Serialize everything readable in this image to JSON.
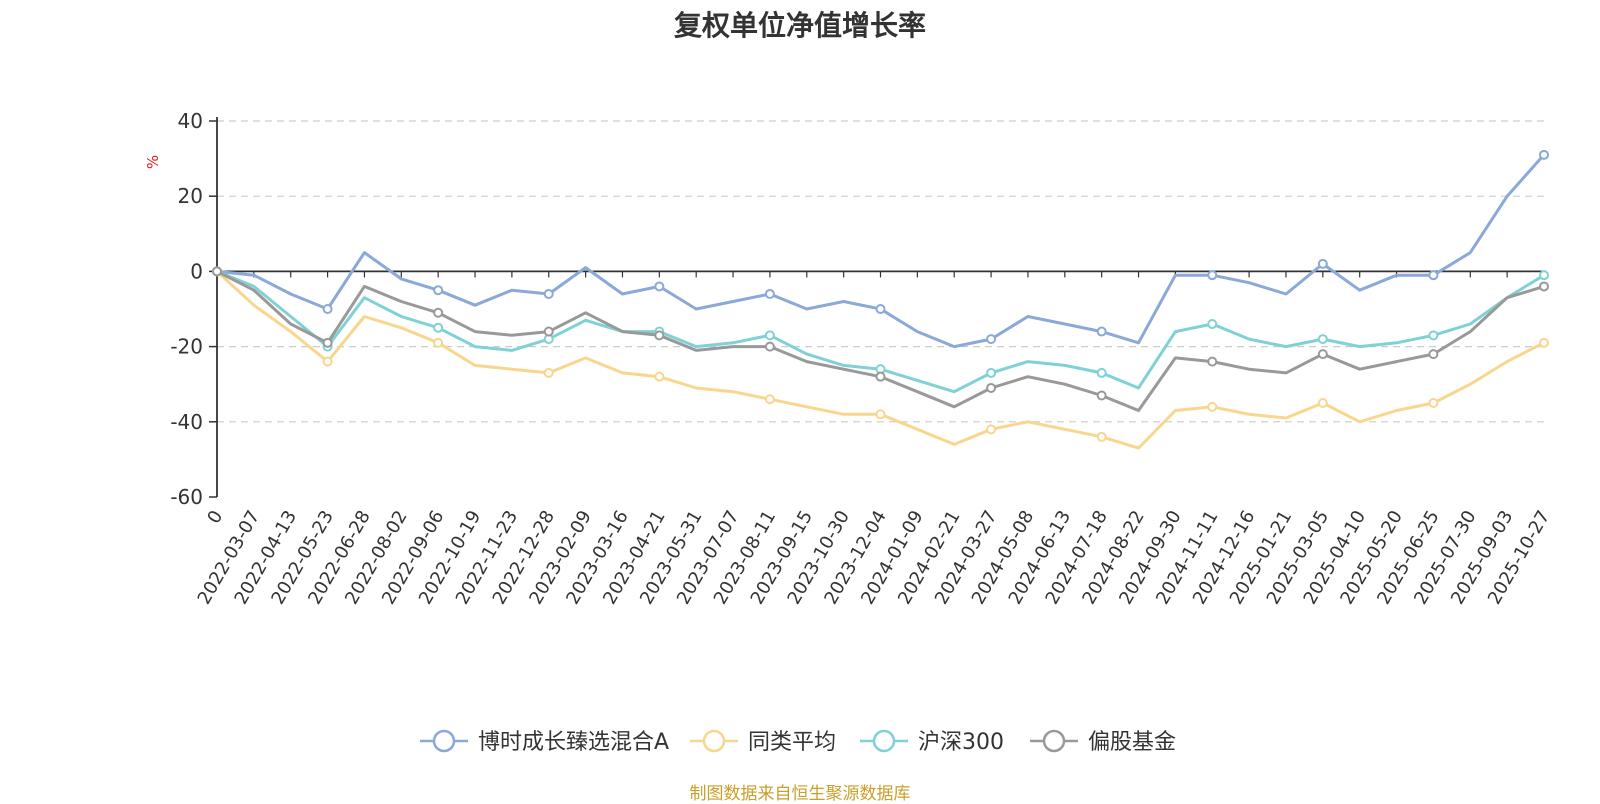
{
  "footer": "制图数据来自恒生聚源数据库",
  "chart_data": {
    "type": "line",
    "title": "复权单位净值增长率",
    "ylabel": "%",
    "xlabel": "",
    "ylim": [
      -60,
      40
    ],
    "yticks": [
      40,
      20,
      0,
      -20,
      -40,
      -60
    ],
    "grid": true,
    "legend_position": "bottom-center",
    "categories": [
      "0",
      "2022-03-07",
      "2022-04-13",
      "2022-05-23",
      "2022-06-28",
      "2022-08-02",
      "2022-09-06",
      "2022-10-19",
      "2022-11-23",
      "2022-12-28",
      "2023-02-09",
      "2023-03-16",
      "2023-04-21",
      "2023-05-31",
      "2023-07-07",
      "2023-08-11",
      "2023-09-15",
      "2023-10-30",
      "2023-12-04",
      "2024-01-09",
      "2024-02-21",
      "2024-03-27",
      "2024-05-08",
      "2024-06-13",
      "2024-07-18",
      "2024-08-22",
      "2024-09-30",
      "2024-11-11",
      "2024-12-16",
      "2025-01-21",
      "2025-03-05",
      "2025-04-10",
      "2025-05-20",
      "2025-06-25",
      "2025-07-30",
      "2025-09-03",
      "2025-10-27"
    ],
    "series": [
      {
        "name": "博时成长臻选混合A",
        "color": "#8aa8d8",
        "values": [
          0,
          -1,
          -6,
          -10,
          5,
          -2,
          -5,
          -9,
          -5,
          -6,
          1,
          -6,
          -4,
          -10,
          -8,
          -6,
          -10,
          -8,
          -10,
          -16,
          -20,
          -18,
          -12,
          -14,
          -16,
          -19,
          -1,
          -1,
          -3,
          -6,
          2,
          -5,
          -1,
          -1,
          5,
          20,
          31
        ]
      },
      {
        "name": "同类平均",
        "color": "#f9d68e",
        "values": [
          0,
          -9,
          -16,
          -24,
          -12,
          -15,
          -19,
          -25,
          -26,
          -27,
          -23,
          -27,
          -28,
          -31,
          -32,
          -34,
          -36,
          -38,
          -38,
          -42,
          -46,
          -42,
          -40,
          -42,
          -44,
          -47,
          -37,
          -36,
          -38,
          -39,
          -35,
          -40,
          -37,
          -35,
          -30,
          -24,
          -19
        ]
      },
      {
        "name": "沪深300",
        "color": "#7fd1d6",
        "values": [
          0,
          -4,
          -12,
          -20,
          -7,
          -12,
          -15,
          -20,
          -21,
          -18,
          -13,
          -16,
          -16,
          -20,
          -19,
          -17,
          -22,
          -25,
          -26,
          -29,
          -32,
          -27,
          -24,
          -25,
          -27,
          -31,
          -16,
          -14,
          -18,
          -20,
          -18,
          -20,
          -19,
          -17,
          -14,
          -7,
          -1
        ]
      },
      {
        "name": "偏股基金",
        "color": "#999999",
        "values": [
          0,
          -5,
          -14,
          -19,
          -4,
          -8,
          -11,
          -16,
          -17,
          -16,
          -11,
          -16,
          -17,
          -21,
          -20,
          -20,
          -24,
          -26,
          -28,
          -32,
          -36,
          -31,
          -28,
          -30,
          -33,
          -37,
          -23,
          -24,
          -26,
          -27,
          -22,
          -26,
          -24,
          -22,
          -16,
          -7,
          -4
        ]
      }
    ]
  }
}
